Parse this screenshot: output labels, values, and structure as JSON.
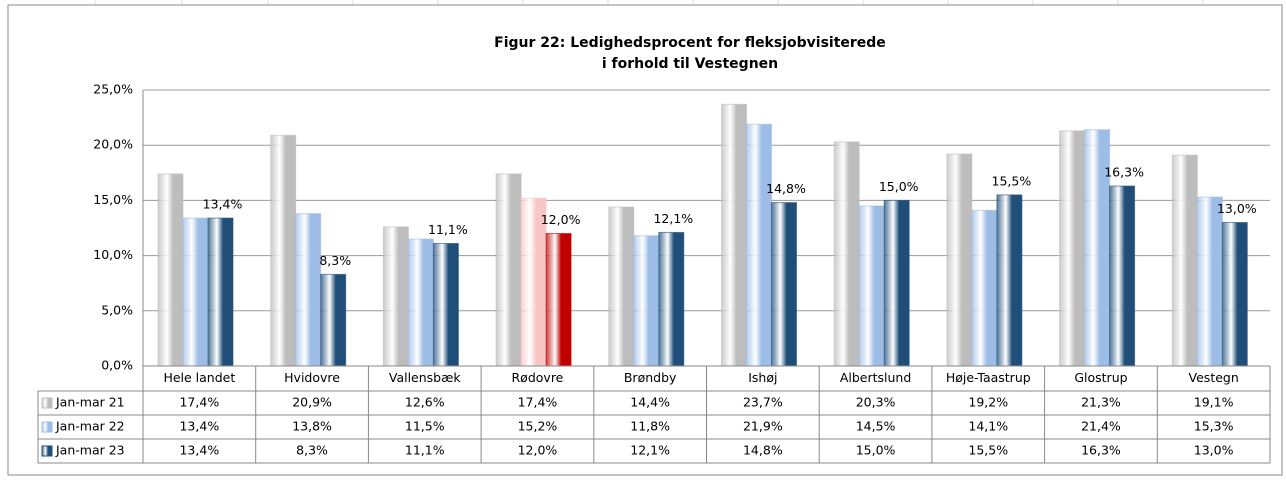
{
  "chart_data": {
    "type": "bar",
    "title": [
      "Figur 22: Ledighedsprocent for fleksjobvisiterede",
      "i forhold til Vestegnen"
    ],
    "categories": [
      "Hele landet",
      "Hvidovre",
      "Vallensbæk",
      "Rødovre",
      "Brøndby",
      "Ishøj",
      "Albertslund",
      "Høje-Taastrup",
      "Glostrup",
      "Vestegn"
    ],
    "series": [
      {
        "name": "Jan-mar 21",
        "color": "#bdbdbd",
        "colors": [
          "#bdbdbd",
          "#bdbdbd",
          "#bdbdbd",
          "#bdbdbd",
          "#bdbdbd",
          "#bdbdbd",
          "#bdbdbd",
          "#bdbdbd",
          "#bdbdbd",
          "#bdbdbd"
        ],
        "values": [
          17.4,
          20.9,
          12.6,
          17.4,
          14.4,
          23.7,
          20.3,
          19.2,
          21.3,
          19.1
        ],
        "value_labels": [
          "17,4%",
          "20,9%",
          "12,6%",
          "17,4%",
          "14,4%",
          "23,7%",
          "20,3%",
          "19,2%",
          "21,3%",
          "19,1%"
        ]
      },
      {
        "name": "Jan-mar 22",
        "color": "#9dbde6",
        "colors": [
          "#9dbde6",
          "#9dbde6",
          "#9dbde6",
          "#f9c6c6",
          "#9dbde6",
          "#9dbde6",
          "#9dbde6",
          "#9dbde6",
          "#9dbde6",
          "#9dbde6"
        ],
        "values": [
          13.4,
          13.8,
          11.5,
          15.2,
          11.8,
          21.9,
          14.5,
          14.1,
          21.4,
          15.3
        ],
        "value_labels": [
          "13,4%",
          "13,8%",
          "11,5%",
          "15,2%",
          "11,8%",
          "21,9%",
          "14,5%",
          "14,1%",
          "21,4%",
          "15,3%"
        ]
      },
      {
        "name": "Jan-mar 23",
        "color": "#1f4e79",
        "colors": [
          "#1f4e79",
          "#1f4e79",
          "#1f4e79",
          "#c00000",
          "#1f4e79",
          "#1f4e79",
          "#1f4e79",
          "#1f4e79",
          "#1f4e79",
          "#1f4e79"
        ],
        "values": [
          13.4,
          8.3,
          11.1,
          12.0,
          12.1,
          14.8,
          15.0,
          15.5,
          16.3,
          13.0
        ],
        "value_labels": [
          "13,4%",
          "8,3%",
          "11,1%",
          "12,0%",
          "12,1%",
          "14,8%",
          "15,0%",
          "15,5%",
          "16,3%",
          "13,0%"
        ]
      }
    ],
    "ylim": [
      0,
      25
    ],
    "yticks": [
      {
        "value": 0,
        "label": "0,0%"
      },
      {
        "value": 5,
        "label": "5,0%"
      },
      {
        "value": 10,
        "label": "10,0%"
      },
      {
        "value": 15,
        "label": "15,0%"
      },
      {
        "value": 20,
        "label": "20,0%"
      },
      {
        "value": 25,
        "label": "25,0%"
      }
    ],
    "grid": true,
    "data_labels_series": 2
  }
}
